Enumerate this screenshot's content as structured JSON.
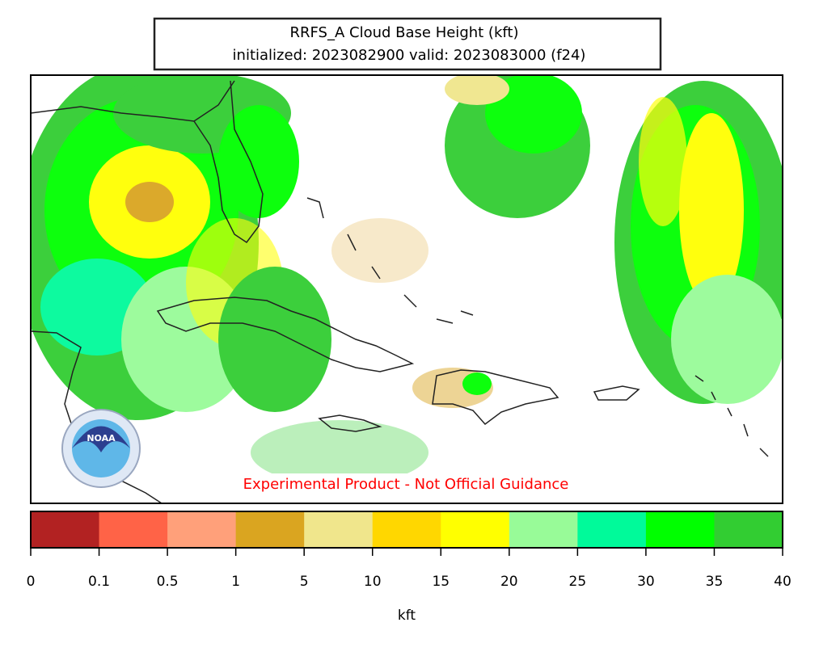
{
  "header": {
    "title": "RRFS_A Cloud Base Height (kft)",
    "subtitle": "initialized: 2023082900 valid: 2023083000 (f24)"
  },
  "map": {
    "disclaimer": "Experimental Product - Not Official Guidance",
    "logo": "NOAA"
  },
  "colorbar": {
    "ticks": [
      0,
      0.1,
      0.5,
      1,
      5,
      10,
      15,
      20,
      25,
      30,
      35,
      40
    ],
    "colors": [
      "#b22222",
      "#ff6347",
      "#ffa07a",
      "#daa520",
      "#f0e68c",
      "#ffd700",
      "#ffff00",
      "#98fb98",
      "#00fa9a",
      "#00ff00",
      "#32cd32"
    ],
    "label": "kft"
  }
}
